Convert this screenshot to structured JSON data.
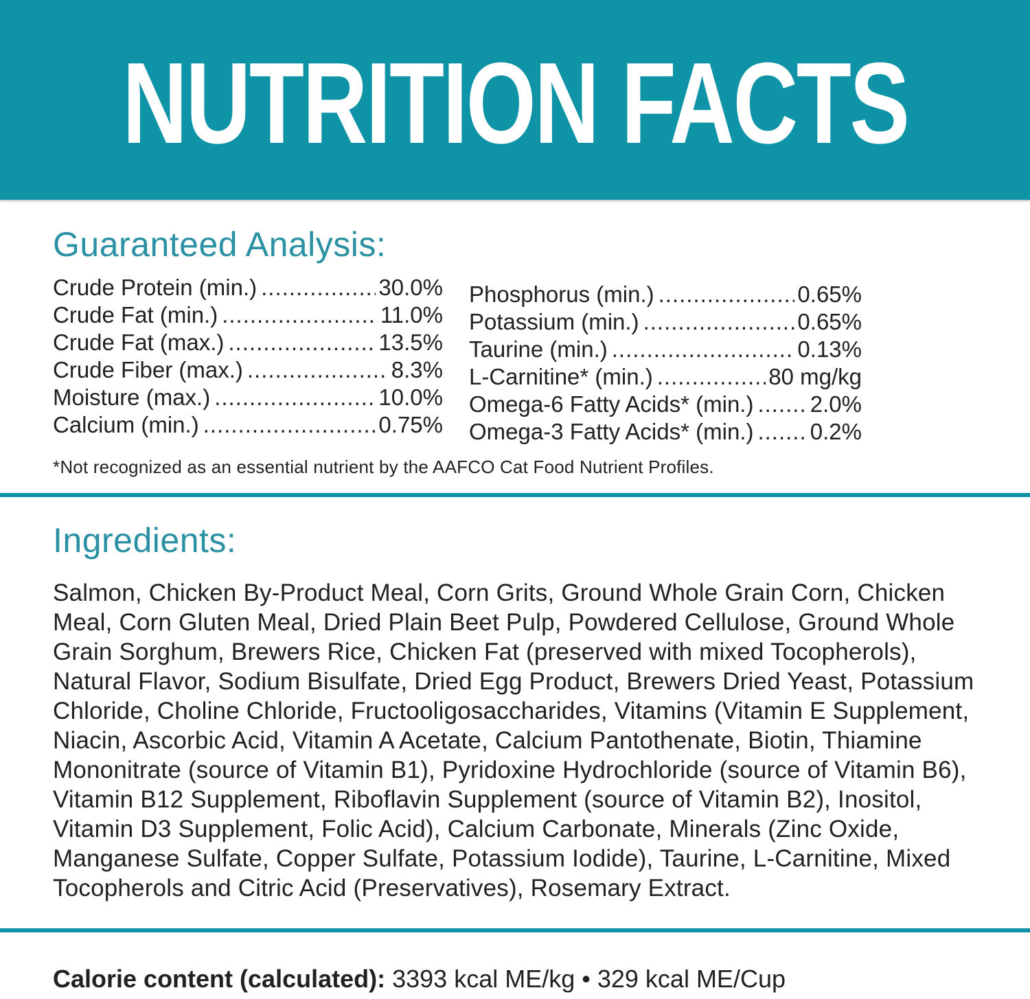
{
  "theme": {
    "banner_teal": "#0f93a7",
    "heading_teal": "#2a90a3",
    "text_color": "#232021",
    "background": "#ffffff"
  },
  "banner": {
    "title": "NUTRITION FACTS"
  },
  "guaranteed_analysis": {
    "heading": "Guaranteed Analysis:",
    "left_column": [
      {
        "label": "Crude Protein (min.)",
        "value": "30.0%"
      },
      {
        "label": "Crude Fat (min.)",
        "value": "11.0%"
      },
      {
        "label": "Crude Fat (max.)",
        "value": "13.5%"
      },
      {
        "label": "Crude Fiber (max.)",
        "value": "8.3%"
      },
      {
        "label": "Moisture (max.)",
        "value": "10.0%"
      },
      {
        "label": "Calcium (min.)",
        "value": "0.75%"
      }
    ],
    "right_column": [
      {
        "label": "Phosphorus (min.)",
        "value": "0.65%"
      },
      {
        "label": "Potassium (min.)",
        "value": "0.65%"
      },
      {
        "label": "Taurine (min.)",
        "value": "0.13%"
      },
      {
        "label": "L-Carnitine* (min.)",
        "value": "80 mg/kg"
      },
      {
        "label": "Omega-6 Fatty Acids* (min.)",
        "value": "2.0%"
      },
      {
        "label": "Omega-3 Fatty Acids* (min.)",
        "value": "0.2%"
      }
    ],
    "footnote": "*Not recognized as an essential nutrient by the AAFCO Cat Food Nutrient Profiles."
  },
  "ingredients": {
    "heading": "Ingredients:",
    "text": "Salmon, Chicken By-Product Meal, Corn Grits, Ground Whole Grain Corn, Chicken Meal, Corn Gluten Meal, Dried Plain Beet Pulp, Powdered Cellulose, Ground Whole Grain Sorghum, Brewers Rice, Chicken Fat (preserved with mixed Tocopherols), Natural Flavor, Sodium Bisulfate, Dried Egg Product, Brewers Dried Yeast, Potassium Chloride, Choline Chloride, Fructooligosaccharides, Vitamins (Vitamin E Supplement, Niacin, Ascorbic Acid, Vitamin A Acetate, Calcium Pantothenate, Biotin, Thiamine Mononitrate (source of Vitamin B1), Pyridoxine Hydrochloride (source of Vitamin B6), Vitamin B12 Supplement, Riboflavin Supplement (source of Vitamin B2), Inositol, Vitamin D3 Supplement, Folic Acid), Calcium Carbonate, Minerals (Zinc Oxide, Manganese Sulfate, Copper Sulfate, Potassium Iodide), Taurine, L-Carnitine, Mixed Tocopherols and Citric Acid (Preservatives), Rosemary Extract."
  },
  "calorie": {
    "label": "Calorie content (calculated):",
    "value": "3393 kcal ME/kg • 329 kcal ME/Cup"
  }
}
